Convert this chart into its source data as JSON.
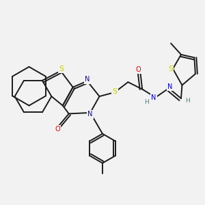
{
  "bg_color": "#f2f2f2",
  "atom_colors": {
    "S": "#cccc00",
    "N": "#0000ee",
    "O": "#ee0000",
    "C": "#1a1a1a",
    "H": "#2a9090"
  },
  "line_width": 1.4,
  "font_size": 7.0
}
